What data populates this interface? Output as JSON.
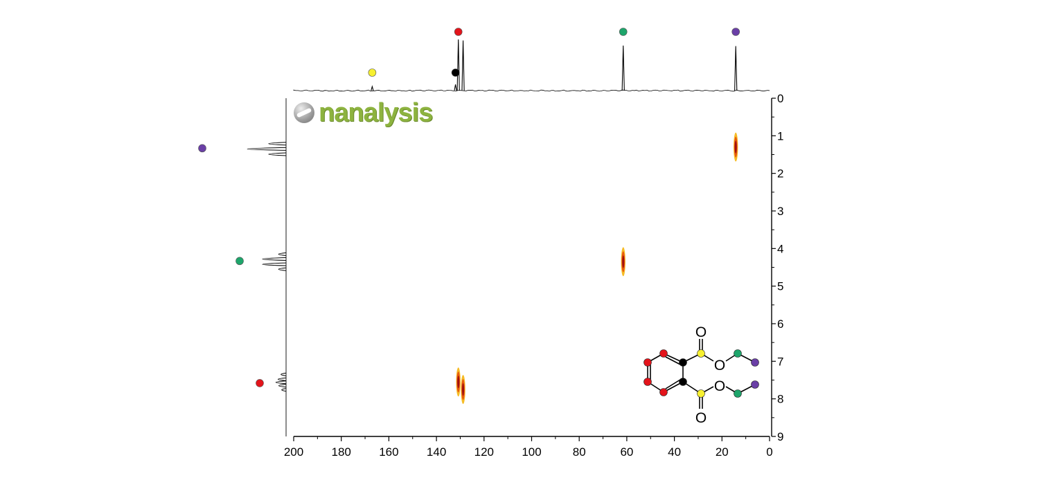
{
  "brand": {
    "logo_text": "nanalysis",
    "logo_icon": "nanalysis-logo-icon"
  },
  "chart_data": {
    "type": "heatmap",
    "plot_kind": "2D HSQC NMR correlation map",
    "title": "",
    "xlabel": "",
    "ylabel": "",
    "xlim": [
      200,
      0
    ],
    "ylim": [
      0,
      9
    ],
    "x_ticks": [
      "200",
      "180",
      "160",
      "140",
      "120",
      "100",
      "80",
      "60",
      "40",
      "20",
      "0"
    ],
    "y_ticks": [
      "0",
      "1",
      "2",
      "3",
      "4",
      "5",
      "6",
      "7",
      "8",
      "9"
    ],
    "colors": {
      "red": "#e3141b",
      "green": "#1ea56b",
      "purple": "#6a3fa6",
      "yellow": "#f7f030",
      "black": "#000000",
      "crosspeak_core": "#a01010",
      "crosspeak_edge": "#f5b000"
    },
    "top_spectrum_13C": {
      "peaks": [
        {
          "ppm": 167.0,
          "height": 0.08,
          "marker": "yellow"
        },
        {
          "ppm": 132.0,
          "height": 0.12,
          "marker": "black"
        },
        {
          "ppm": 130.8,
          "height": 1.0,
          "marker": "red"
        },
        {
          "ppm": 128.8,
          "height": 0.98,
          "marker": ""
        },
        {
          "ppm": 61.5,
          "height": 0.88,
          "marker": "green"
        },
        {
          "ppm": 14.2,
          "height": 0.87,
          "marker": "purple"
        }
      ]
    },
    "left_spectrum_1H": {
      "multiplets": [
        {
          "ppm": 1.35,
          "pattern": "triplet",
          "marker": "purple"
        },
        {
          "ppm": 4.35,
          "pattern": "quartet",
          "marker": "green"
        },
        {
          "ppm": 7.6,
          "pattern": "multiplet",
          "marker": "red"
        }
      ]
    },
    "crosspeaks": [
      {
        "c_ppm": 14.2,
        "h_ppm": 1.3,
        "color_group": "purple"
      },
      {
        "c_ppm": 61.5,
        "h_ppm": 4.35,
        "color_group": "green"
      },
      {
        "c_ppm": 130.8,
        "h_ppm": 7.55,
        "color_group": "red"
      },
      {
        "c_ppm": 128.8,
        "h_ppm": 7.75,
        "color_group": "red"
      }
    ]
  },
  "structure": {
    "name": "diethyl phthalate",
    "oxygen_label": "O",
    "ring_atoms": [
      "red",
      "red",
      "red",
      "red",
      "black",
      "black"
    ],
    "carbonyl_atoms": [
      "yellow",
      "yellow"
    ],
    "ethyl_atoms": [
      "green",
      "purple",
      "green",
      "purple"
    ]
  }
}
